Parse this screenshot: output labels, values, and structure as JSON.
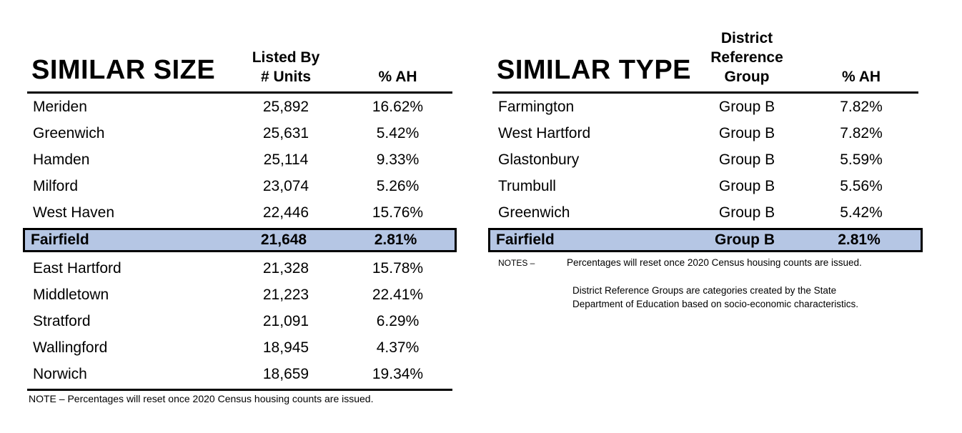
{
  "similar_size": {
    "title": "SIMILAR SIZE",
    "columns": {
      "units_line1": "Listed By",
      "units_line2": "# Units",
      "pct": "% AH"
    },
    "rows": [
      {
        "town": "Meriden",
        "units": "25,892",
        "pct": "16.62%"
      },
      {
        "town": "Greenwich",
        "units": "25,631",
        "pct": "5.42%"
      },
      {
        "town": "Hamden",
        "units": "25,114",
        "pct": "9.33%"
      },
      {
        "town": "Milford",
        "units": "23,074",
        "pct": "5.26%"
      },
      {
        "town": "West Haven",
        "units": "22,446",
        "pct": "15.76%"
      },
      {
        "town": "Fairfield",
        "units": "21,648",
        "pct": "2.81%",
        "highlight": true
      },
      {
        "town": "East Hartford",
        "units": "21,328",
        "pct": "15.78%"
      },
      {
        "town": "Middletown",
        "units": "21,223",
        "pct": "22.41%"
      },
      {
        "town": "Stratford",
        "units": "21,091",
        "pct": "6.29%"
      },
      {
        "town": "Wallingford",
        "units": "18,945",
        "pct": "4.37%"
      },
      {
        "town": "Norwich",
        "units": "18,659",
        "pct": "19.34%"
      }
    ],
    "note": "NOTE – Percentages will reset once 2020 Census housing counts are issued."
  },
  "similar_type": {
    "title": "SIMILAR TYPE",
    "columns": {
      "group_line1": "District",
      "group_line2": "Reference",
      "group_line3": "Group",
      "pct": "% AH"
    },
    "rows": [
      {
        "town": "Farmington",
        "group": "Group B",
        "pct": "7.82%"
      },
      {
        "town": "West Hartford",
        "group": "Group B",
        "pct": "7.82%"
      },
      {
        "town": "Glastonbury",
        "group": "Group B",
        "pct": "5.59%"
      },
      {
        "town": "Trumbull",
        "group": "Group B",
        "pct": "5.56%"
      },
      {
        "town": "Greenwich",
        "group": "Group B",
        "pct": "5.42%"
      },
      {
        "town": "Fairfield",
        "group": "Group B",
        "pct": "2.81%",
        "highlight": true
      }
    ],
    "notes_label": "NOTES –",
    "note1": "Percentages will reset once 2020 Census housing counts are issued.",
    "note2": "District Reference Groups are categories created by the State Department of Education based on socio-economic characteristics."
  },
  "colors": {
    "highlight_fill": "#b5c6e4",
    "highlight_border": "#000000",
    "rule": "#000000",
    "text": "#000000"
  }
}
